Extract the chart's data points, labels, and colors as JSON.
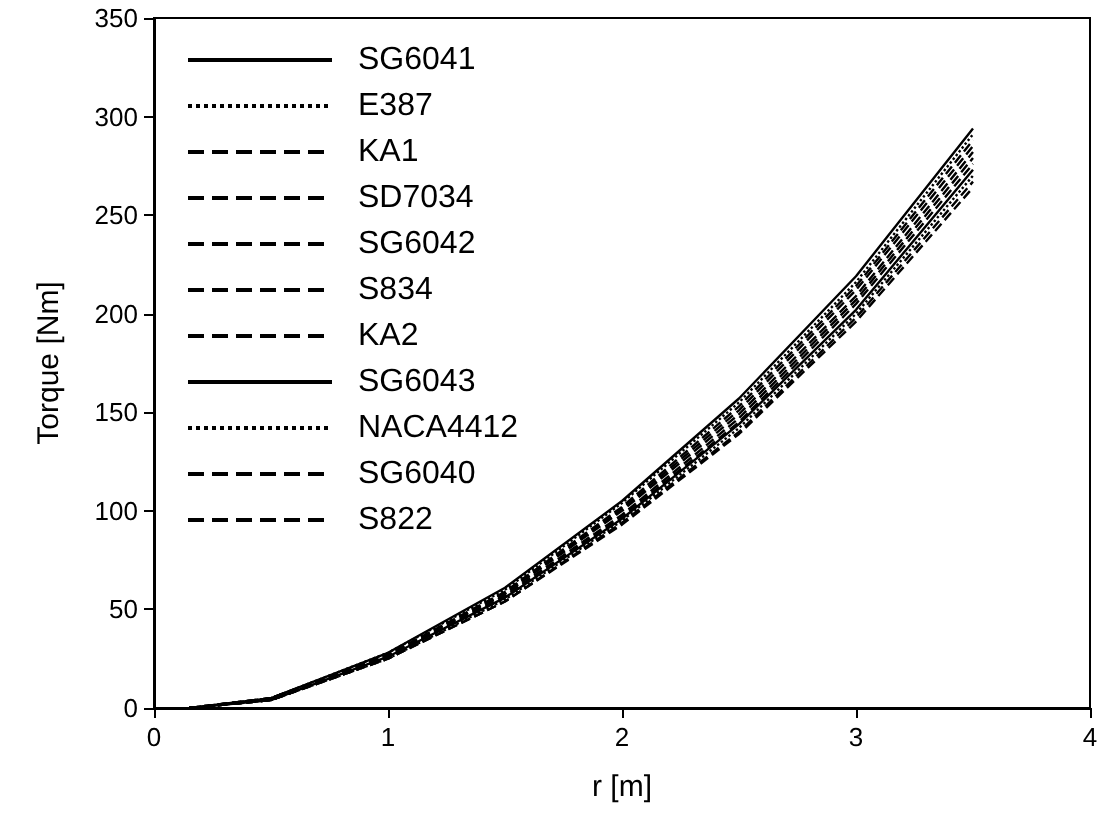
{
  "chart_data": {
    "type": "line",
    "xlabel": "r [m]",
    "ylabel": "Torque [Nm]",
    "xlim": [
      0,
      4
    ],
    "xticks": [
      0,
      1,
      2,
      3,
      4
    ],
    "ylim": [
      0,
      350
    ],
    "yticks": [
      0,
      50,
      100,
      150,
      200,
      250,
      300,
      350
    ],
    "grid": false,
    "legend": "top left",
    "marker": "none",
    "x": [
      0.15,
      0.5,
      1,
      1.5,
      2,
      2.5,
      3,
      3.5
    ],
    "series": [
      {
        "name": "SG6041",
        "color": "#000000",
        "line_style": "solid",
        "values": [
          0,
          5,
          28,
          61,
          105,
          157,
          219,
          294
        ]
      },
      {
        "name": "E387",
        "color": "#000000",
        "line_style": "dotted",
        "values": [
          0,
          5,
          28,
          60,
          104,
          155,
          216,
          291
        ]
      },
      {
        "name": "KA1",
        "color": "#000000",
        "line_style": "dashed",
        "values": [
          0,
          5,
          27,
          59,
          102,
          153,
          214,
          288
        ]
      },
      {
        "name": "SD7034",
        "color": "#000000",
        "line_style": "dashed",
        "values": [
          0,
          5,
          27,
          58,
          101,
          151,
          212,
          285
        ]
      },
      {
        "name": "SG6042",
        "color": "#000000",
        "line_style": "dashed",
        "values": [
          0,
          5,
          27,
          58,
          100,
          149,
          209,
          282
        ]
      },
      {
        "name": "S834",
        "color": "#000000",
        "line_style": "dashed",
        "values": [
          0,
          4,
          26,
          57,
          98,
          147,
          207,
          279
        ]
      },
      {
        "name": "KA2",
        "color": "#000000",
        "line_style": "dashed",
        "values": [
          0,
          4,
          26,
          56,
          97,
          145,
          205,
          276
        ]
      },
      {
        "name": "SG6043",
        "color": "#000000",
        "line_style": "solid",
        "values": [
          0,
          4,
          26,
          56,
          96,
          144,
          202,
          273
        ]
      },
      {
        "name": "NACA4412",
        "color": "#000000",
        "line_style": "dotted",
        "values": [
          0,
          4,
          25,
          55,
          95,
          142,
          200,
          270
        ]
      },
      {
        "name": "SG6040",
        "color": "#000000",
        "line_style": "dashed",
        "values": [
          0,
          4,
          25,
          54,
          94,
          140,
          198,
          267
        ]
      },
      {
        "name": "S822",
        "color": "#000000",
        "line_style": "dashed",
        "values": [
          0,
          4,
          25,
          54,
          93,
          139,
          196,
          264
        ]
      }
    ]
  }
}
